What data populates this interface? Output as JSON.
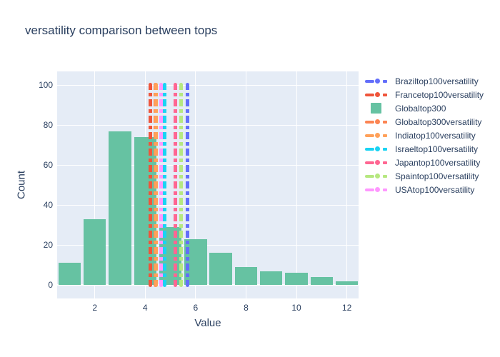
{
  "title": "versatility comparison between tops",
  "colors": {
    "text": "#2a3f5f",
    "plot_bg": "#e5ecf6",
    "grid": "#ffffff",
    "bar": "#66c2a2"
  },
  "chart_data": {
    "type": "bar",
    "subtype": "histogram",
    "title": "versatility comparison between tops",
    "xlabel": "Value",
    "ylabel": "Count",
    "grid": true,
    "legend_position": "right",
    "xlim": [
      0.507,
      12.465
    ],
    "ylim": [
      -6.7,
      106.9
    ],
    "x_ticks": [
      2,
      4,
      6,
      8,
      10,
      12
    ],
    "y_ticks": [
      0,
      20,
      40,
      60,
      80,
      100
    ],
    "series_name": "Globaltop300",
    "bar_color": "#66c2a2",
    "categories": [
      1,
      2,
      3,
      4,
      5,
      6,
      7,
      8,
      9,
      10,
      11,
      12
    ],
    "values": [
      11,
      33,
      77,
      74,
      29,
      23,
      16,
      9,
      7,
      6,
      4,
      2
    ],
    "vlines": [
      {
        "label": "Francetop100versatility",
        "x": 4.2,
        "color": "#ef553b"
      },
      {
        "label": "Globaltop300versatility",
        "x": 4.39,
        "color": "#fc8452"
      },
      {
        "label": "Indiatop100versatility",
        "x": 4.43,
        "color": "#ffa15a"
      },
      {
        "label": "USAtop100versatility",
        "x": 4.62,
        "color": "#ff97ff"
      },
      {
        "label": "Israeltop100versatility",
        "x": 4.77,
        "color": "#19d3f3"
      },
      {
        "label": "Japantop100versatility",
        "x": 5.21,
        "color": "#ff6692"
      },
      {
        "label": "Spaintop100versatility",
        "x": 5.41,
        "color": "#b6e880"
      },
      {
        "label": "Braziltop100versatility",
        "x": 5.68,
        "color": "#636efa"
      }
    ],
    "legend": [
      {
        "label": "Braziltop100versatility",
        "type": "line",
        "color": "#636efa"
      },
      {
        "label": "Francetop100versatility",
        "type": "line",
        "color": "#ef553b"
      },
      {
        "label": "Globaltop300",
        "type": "square",
        "color": "#66c2a2"
      },
      {
        "label": "Globaltop300versatility",
        "type": "line",
        "color": "#fc8452"
      },
      {
        "label": "Indiatop100versatility",
        "type": "line",
        "color": "#ffa15a"
      },
      {
        "label": "Israeltop100versatility",
        "type": "line",
        "color": "#19d3f3"
      },
      {
        "label": "Japantop100versatility",
        "type": "line",
        "color": "#ff6692"
      },
      {
        "label": "Spaintop100versatility",
        "type": "line",
        "color": "#b6e880"
      },
      {
        "label": "USAtop100versatility",
        "type": "line",
        "color": "#ff97ff"
      }
    ]
  }
}
